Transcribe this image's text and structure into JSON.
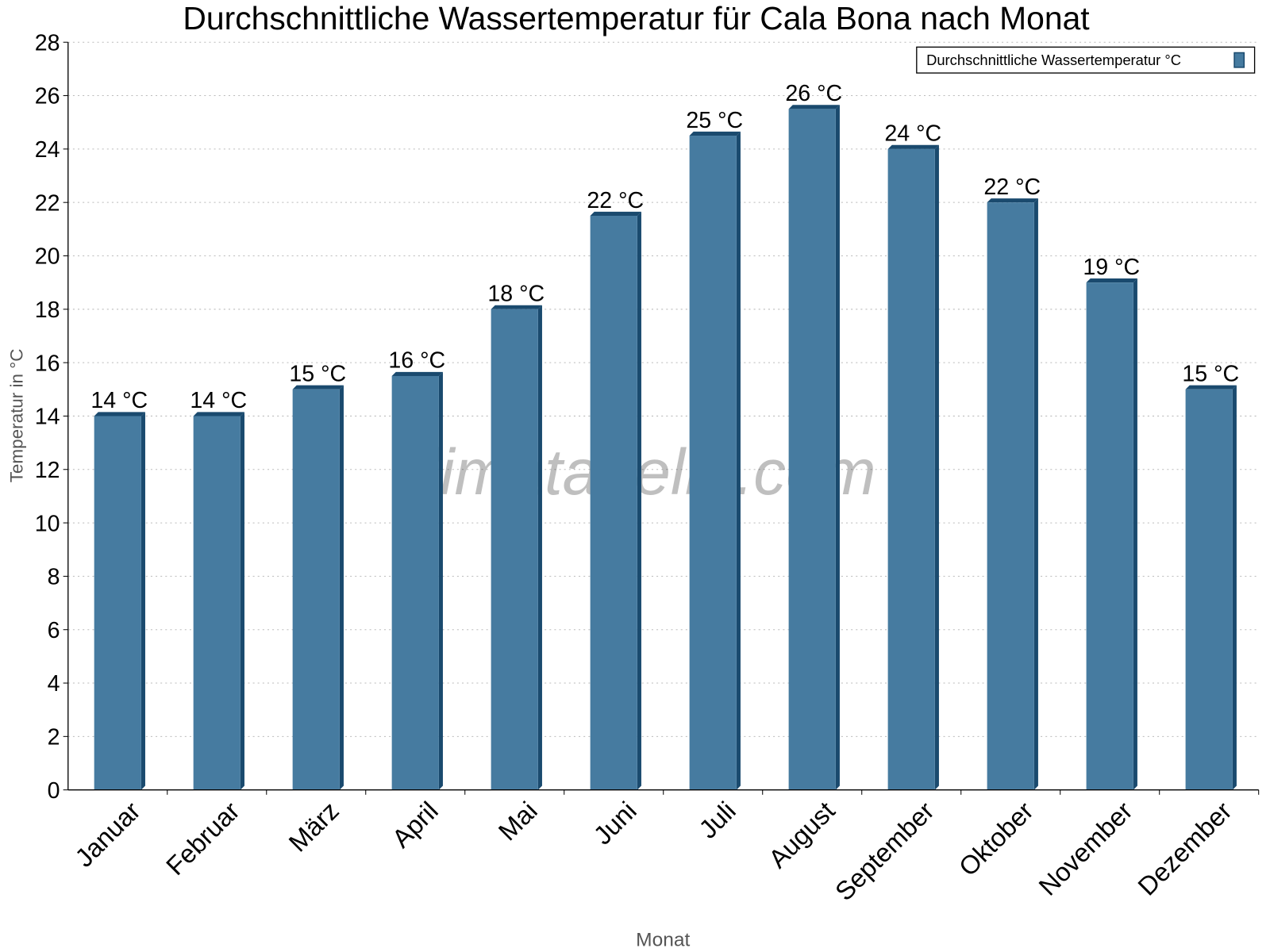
{
  "chart_data": {
    "type": "bar",
    "title": "Durchschnittliche Wassertemperatur für Cala Bona nach Monat",
    "xlabel": "Monat",
    "ylabel": "Temperatur in °C",
    "categories": [
      "Januar",
      "Februar",
      "März",
      "April",
      "Mai",
      "Juni",
      "Juli",
      "August",
      "September",
      "Oktober",
      "November",
      "Dezember"
    ],
    "series": [
      {
        "name": "Durchschnittliche Wassertemperatur °C",
        "values": [
          14,
          14,
          15,
          15.5,
          18,
          21.5,
          24.5,
          25.5,
          24,
          22,
          19,
          15
        ],
        "data_labels": [
          "14 °C",
          "14 °C",
          "15 °C",
          "16 °C",
          "18 °C",
          "22 °C",
          "25 °C",
          "26 °C",
          "24 °C",
          "22 °C",
          "19 °C",
          "15 °C"
        ]
      }
    ],
    "ylim": [
      0,
      28
    ],
    "yticks": [
      "0",
      "2",
      "4",
      "6",
      "8",
      "10",
      "12",
      "14",
      "16",
      "18",
      "20",
      "22",
      "24",
      "26",
      "28"
    ],
    "grid": true,
    "legend_position": "top-right",
    "colors": {
      "bar": "#467ba0",
      "bar_side": "#1a4a6e"
    },
    "watermark": "klimatabelle.com"
  }
}
